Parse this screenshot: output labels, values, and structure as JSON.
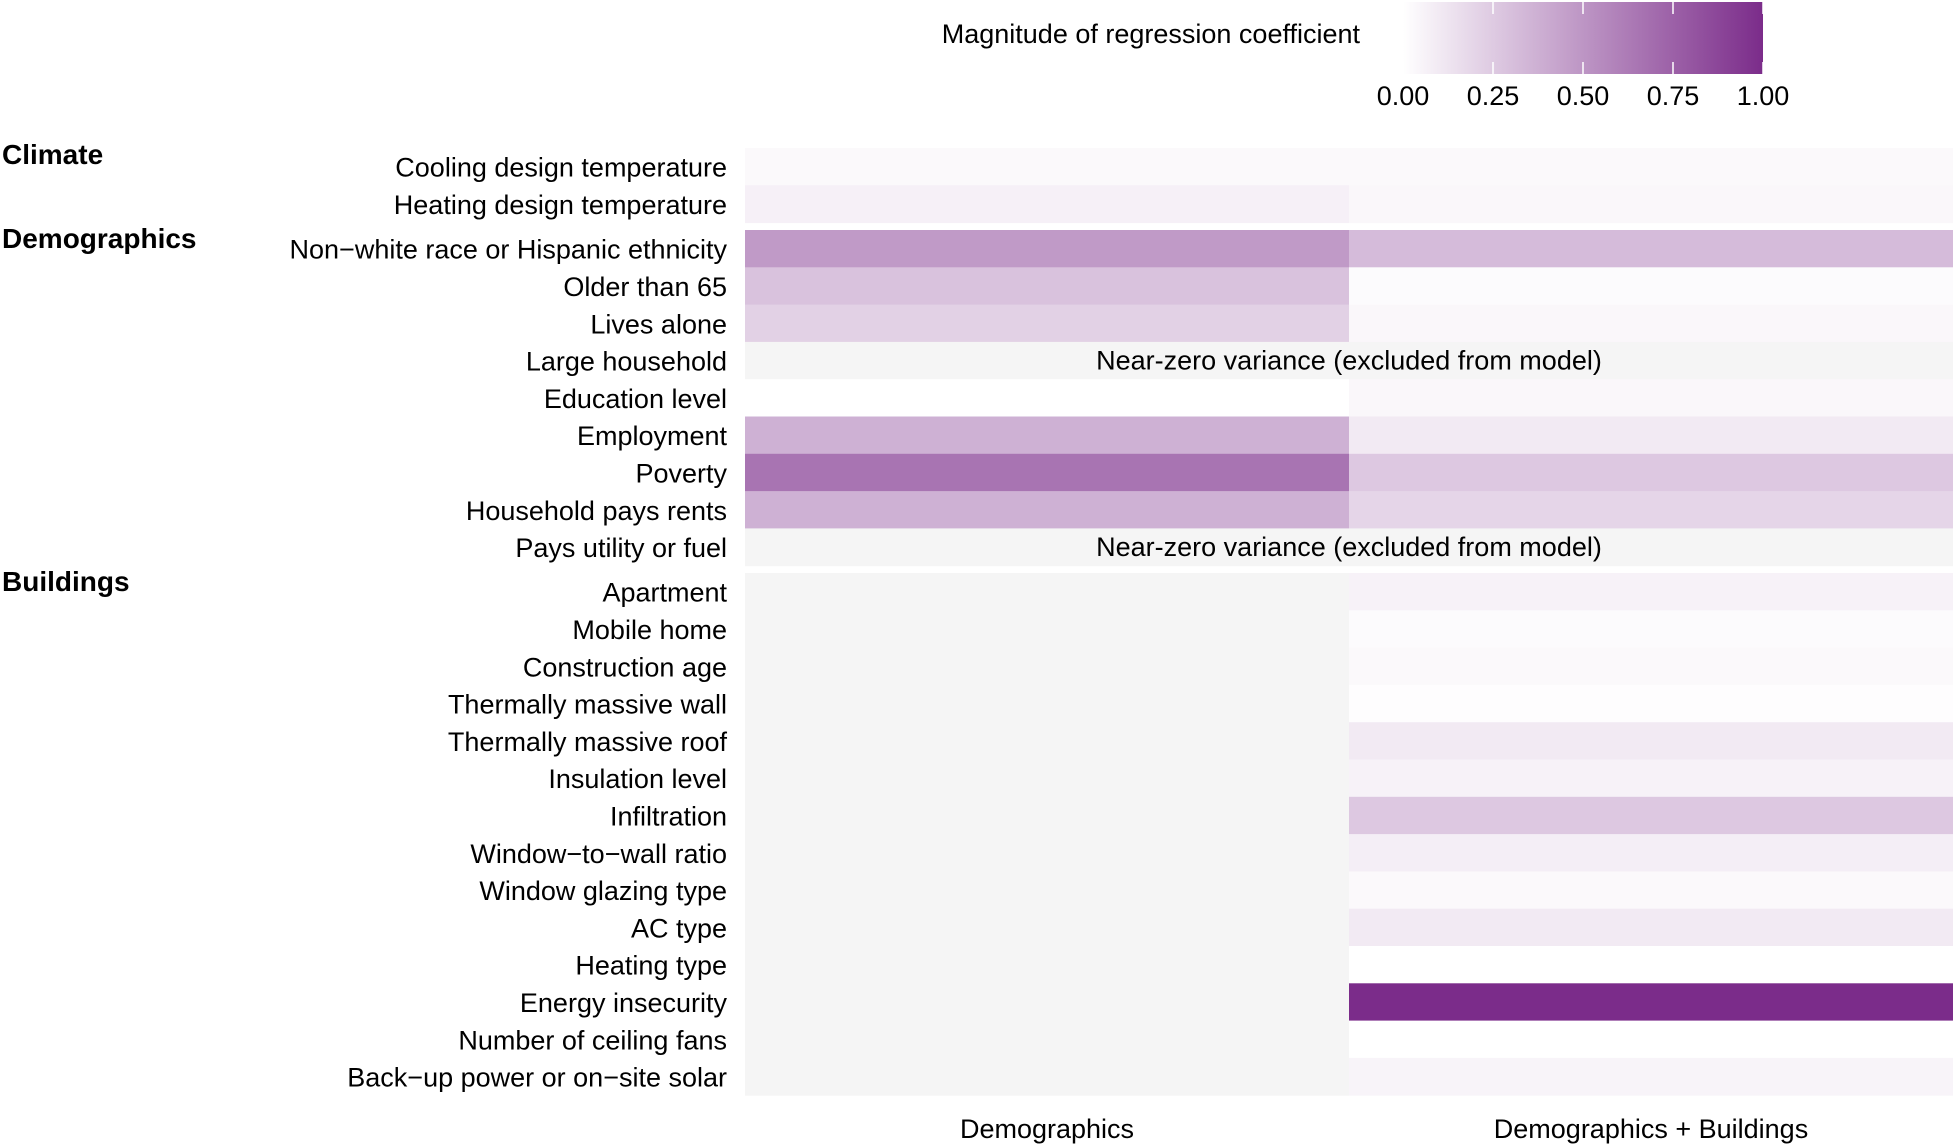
{
  "chart_data": {
    "type": "heatmap",
    "columns": [
      "Demographics",
      "Demographics + Buildings"
    ],
    "legend": {
      "title": "Magnitude of regression coefficient",
      "ticks": [
        "0.00",
        "0.25",
        "0.50",
        "0.75",
        "1.00"
      ],
      "range": [
        0,
        1
      ],
      "low_color": "#ffffff",
      "high_color": "#7b2c8a"
    },
    "colors": {
      "excluded": "#f5f5f5",
      "accent": "#7b2c8a"
    },
    "excluded_note": "Near-zero variance (excluded from model)",
    "groups": [
      {
        "name": "Climate",
        "rows": [
          {
            "label": "Cooling design temperature",
            "values": [
              0.03,
              0.03
            ]
          },
          {
            "label": "Heating design temperature",
            "values": [
              0.07,
              0.04
            ]
          }
        ]
      },
      {
        "name": "Demographics",
        "rows": [
          {
            "label": "Non−white race or Hispanic ethnicity",
            "values": [
              0.48,
              0.32
            ]
          },
          {
            "label": "Older than 65",
            "values": [
              0.29,
              0.02
            ]
          },
          {
            "label": "Lives alone",
            "values": [
              0.22,
              0.04
            ]
          },
          {
            "label": "Large household",
            "values": [
              null,
              null
            ],
            "excluded": true
          },
          {
            "label": "Education level",
            "values": [
              0.0,
              0.04
            ]
          },
          {
            "label": "Employment",
            "values": [
              0.37,
              0.1
            ]
          },
          {
            "label": "Poverty",
            "values": [
              0.66,
              0.26
            ]
          },
          {
            "label": "Household pays rents",
            "values": [
              0.37,
              0.2
            ]
          },
          {
            "label": "Pays utility or fuel",
            "values": [
              null,
              null
            ],
            "excluded": true
          }
        ]
      },
      {
        "name": "Buildings",
        "rows": [
          {
            "label": "Apartment",
            "values": [
              null,
              0.06
            ]
          },
          {
            "label": "Mobile home",
            "values": [
              null,
              0.02
            ]
          },
          {
            "label": "Construction age",
            "values": [
              null,
              0.03
            ]
          },
          {
            "label": "Thermally massive wall",
            "values": [
              null,
              0.01
            ]
          },
          {
            "label": "Thermally massive roof",
            "values": [
              null,
              0.1
            ]
          },
          {
            "label": "Insulation level",
            "values": [
              null,
              0.06
            ]
          },
          {
            "label": "Infiltration",
            "values": [
              null,
              0.26
            ]
          },
          {
            "label": "Window−to−wall ratio",
            "values": [
              null,
              0.08
            ]
          },
          {
            "label": "Window glazing type",
            "values": [
              null,
              0.03
            ]
          },
          {
            "label": "AC type",
            "values": [
              null,
              0.1
            ]
          },
          {
            "label": "Heating type",
            "values": [
              null,
              0.0
            ]
          },
          {
            "label": "Energy insecurity",
            "values": [
              null,
              1.0
            ]
          },
          {
            "label": "Number of ceiling fans",
            "values": [
              null,
              0.0
            ]
          },
          {
            "label": "Back−up power or on−site solar",
            "values": [
              null,
              0.05
            ]
          }
        ]
      }
    ]
  }
}
